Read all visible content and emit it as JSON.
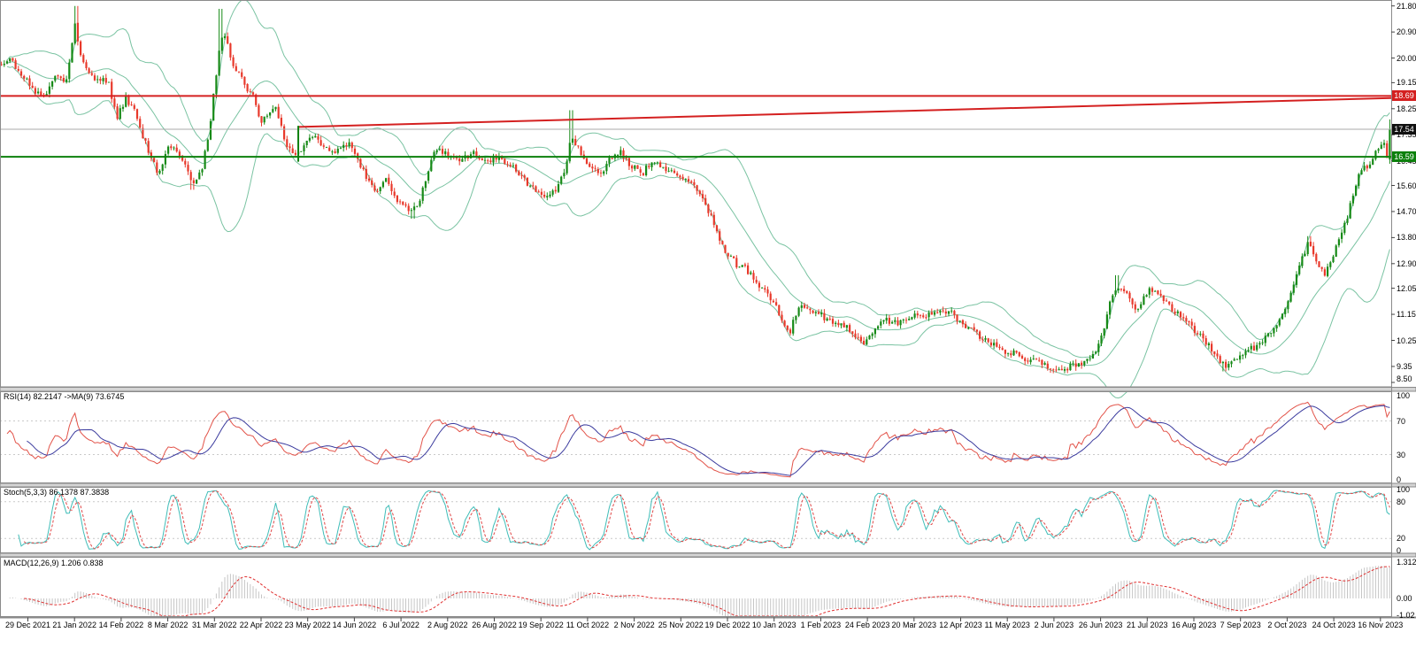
{
  "window": {
    "title": "trading-chart",
    "background": "#ffffff"
  },
  "colors": {
    "candle_up": "#178a17",
    "candle_down": "#e8392b",
    "bollinger": "#7ac3a2",
    "resistance_line": "#d42020",
    "support_line": "#0c800c",
    "last_price_line": "#a8a8a8",
    "trendline": "#d42020",
    "rsi_line": "#e25248",
    "rsi_ma_line": "#3b3b9e",
    "stoch_k": "#3fbdb8",
    "stoch_d": "#e04848",
    "macd_hist": "#c6c6c6",
    "macd_signal": "#e03030",
    "grid": "#c9c9c9",
    "panel_border": "#8a8a8a",
    "separator_fill": "#d4d4d4"
  },
  "chart_data": {
    "type": "candlestick",
    "x_dates": [
      "29 Dec 2021",
      "21 Jan 2022",
      "14 Feb 2022",
      "8 Mar 2022",
      "31 Mar 2022",
      "22 Apr 2022",
      "23 May 2022",
      "14 Jun 2022",
      "6 Jul 2022",
      "2 Aug 2022",
      "26 Aug 2022",
      "19 Sep 2022",
      "11 Oct 2022",
      "2 Nov 2022",
      "25 Nov 2022",
      "19 Dec 2022",
      "10 Jan 2023",
      "1 Feb 2023",
      "24 Feb 2023",
      "20 Mar 2023",
      "12 Apr 2023",
      "11 May 2023",
      "2 Jun 2023",
      "26 Jun 2023",
      "21 Jul 2023",
      "16 Aug 2023",
      "7 Sep 2023",
      "2 Oct 2023",
      "24 Oct 2023",
      "16 Nov 2023"
    ],
    "main": {
      "ylim": [
        8.5,
        21.8
      ],
      "y_ticks": [
        "21.80",
        "20.90",
        "20.00",
        "19.15",
        "18.25",
        "17.35",
        "16.45",
        "15.60",
        "14.70",
        "13.80",
        "12.90",
        "12.05",
        "11.15",
        "10.25",
        "9.35",
        "8.50"
      ],
      "num_bars": 492,
      "bollinger": {
        "period": 20,
        "deviation": 2
      },
      "lines": {
        "resistance": {
          "value": 18.69,
          "label": "18.69"
        },
        "support": {
          "value": 16.59,
          "label": "16.59"
        },
        "last_price": {
          "value": 17.54,
          "label": "17.54"
        },
        "trendline": {
          "x1_frac": 0.2144,
          "price1": 17.62,
          "x2_frac": 1.0,
          "price2": 18.62
        },
        "vertical_segment": {
          "x_frac": 0.2144,
          "price_top": 17.66,
          "price_bottom": 16.42
        }
      },
      "price_path_anchors": [
        [
          0,
          19.7
        ],
        [
          0.0076,
          20.0
        ],
        [
          0.0159,
          19.4
        ],
        [
          0.0254,
          18.9
        ],
        [
          0.0318,
          18.6
        ],
        [
          0.0394,
          19.4
        ],
        [
          0.0477,
          19.2
        ],
        [
          0.0509,
          20.3
        ],
        [
          0.0541,
          21.2
        ],
        [
          0.0573,
          20.3
        ],
        [
          0.0617,
          19.6
        ],
        [
          0.0687,
          19.3
        ],
        [
          0.0776,
          19.2
        ],
        [
          0.084,
          17.9
        ],
        [
          0.0903,
          18.6
        ],
        [
          0.0967,
          18.2
        ],
        [
          0.1037,
          17.2
        ],
        [
          0.1094,
          16.5
        ],
        [
          0.1145,
          16.0
        ],
        [
          0.1209,
          16.9
        ],
        [
          0.1272,
          16.7
        ],
        [
          0.1336,
          16.2
        ],
        [
          0.1387,
          15.6
        ],
        [
          0.145,
          16.2
        ],
        [
          0.1508,
          17.5
        ],
        [
          0.1546,
          19.2
        ],
        [
          0.1578,
          20.3
        ],
        [
          0.161,
          20.9
        ],
        [
          0.1641,
          20.3
        ],
        [
          0.1692,
          19.6
        ],
        [
          0.1749,
          19.2
        ],
        [
          0.1813,
          18.7
        ],
        [
          0.1877,
          17.8
        ],
        [
          0.1921,
          18.0
        ],
        [
          0.1972,
          18.4
        ],
        [
          0.2023,
          17.6
        ],
        [
          0.2068,
          16.8
        ],
        [
          0.2131,
          16.6
        ],
        [
          0.2195,
          17.1
        ],
        [
          0.2258,
          17.3
        ],
        [
          0.2322,
          16.9
        ],
        [
          0.2386,
          16.7
        ],
        [
          0.2449,
          16.9
        ],
        [
          0.2513,
          17.0
        ],
        [
          0.2576,
          16.4
        ],
        [
          0.264,
          15.8
        ],
        [
          0.2704,
          15.4
        ],
        [
          0.2767,
          15.9
        ],
        [
          0.2831,
          15.3
        ],
        [
          0.2894,
          14.9
        ],
        [
          0.2958,
          14.7
        ],
        [
          0.3022,
          15.1
        ],
        [
          0.3098,
          16.5
        ],
        [
          0.3149,
          17.0
        ],
        [
          0.3212,
          16.6
        ],
        [
          0.3308,
          16.5
        ],
        [
          0.3403,
          16.7
        ],
        [
          0.3499,
          16.4
        ],
        [
          0.3594,
          16.6
        ],
        [
          0.369,
          16.2
        ],
        [
          0.3766,
          15.8
        ],
        [
          0.3849,
          15.4
        ],
        [
          0.3931,
          15.1
        ],
        [
          0.4008,
          15.6
        ],
        [
          0.4071,
          16.3
        ],
        [
          0.4103,
          17.3
        ],
        [
          0.4148,
          17.0
        ],
        [
          0.4198,
          16.5
        ],
        [
          0.4262,
          16.2
        ],
        [
          0.4326,
          16.0
        ],
        [
          0.4389,
          16.5
        ],
        [
          0.4453,
          16.8
        ],
        [
          0.4529,
          16.3
        ],
        [
          0.4612,
          16.0
        ],
        [
          0.4695,
          16.4
        ],
        [
          0.4771,
          16.2
        ],
        [
          0.4847,
          16.0
        ],
        [
          0.493,
          15.9
        ],
        [
          0.5013,
          15.4
        ],
        [
          0.5089,
          14.8
        ],
        [
          0.5127,
          14.3
        ],
        [
          0.5165,
          13.8
        ],
        [
          0.5204,
          13.4
        ],
        [
          0.5248,
          13.1
        ],
        [
          0.5293,
          12.9
        ],
        [
          0.5344,
          12.8
        ],
        [
          0.5407,
          12.4
        ],
        [
          0.5458,
          12.1
        ],
        [
          0.5509,
          11.9
        ],
        [
          0.5585,
          11.3
        ],
        [
          0.5636,
          10.8
        ],
        [
          0.568,
          10.6
        ],
        [
          0.5725,
          11.2
        ],
        [
          0.5776,
          11.5
        ],
        [
          0.5839,
          11.3
        ],
        [
          0.5916,
          11.1
        ],
        [
          0.5979,
          10.9
        ],
        [
          0.6043,
          10.8
        ],
        [
          0.6107,
          10.6
        ],
        [
          0.617,
          10.3
        ],
        [
          0.6221,
          10.15
        ],
        [
          0.6285,
          10.7
        ],
        [
          0.6361,
          11.0
        ],
        [
          0.6438,
          10.8
        ],
        [
          0.652,
          11.0
        ],
        [
          0.6597,
          11.2
        ],
        [
          0.6679,
          11.1
        ],
        [
          0.6756,
          11.3
        ],
        [
          0.6838,
          11.2
        ],
        [
          0.6921,
          10.8
        ],
        [
          0.6997,
          10.5
        ],
        [
          0.7074,
          10.3
        ],
        [
          0.715,
          10.1
        ],
        [
          0.7226,
          9.9
        ],
        [
          0.7303,
          9.8
        ],
        [
          0.7379,
          9.6
        ],
        [
          0.7455,
          9.5
        ],
        [
          0.7532,
          9.35
        ],
        [
          0.7608,
          9.3
        ],
        [
          0.7672,
          9.25
        ],
        [
          0.7735,
          9.4
        ],
        [
          0.7799,
          9.6
        ],
        [
          0.7863,
          9.7
        ],
        [
          0.7907,
          10.2
        ],
        [
          0.7952,
          11.0
        ],
        [
          0.799,
          11.7
        ],
        [
          0.8028,
          12.1
        ],
        [
          0.8079,
          11.9
        ],
        [
          0.813,
          11.6
        ],
        [
          0.8175,
          11.3
        ],
        [
          0.8219,
          11.8
        ],
        [
          0.827,
          12.1
        ],
        [
          0.8321,
          11.9
        ],
        [
          0.8372,
          11.6
        ],
        [
          0.8429,
          11.3
        ],
        [
          0.8486,
          11.1
        ],
        [
          0.8544,
          10.9
        ],
        [
          0.8601,
          10.5
        ],
        [
          0.8652,
          10.3
        ],
        [
          0.8702,
          10.0
        ],
        [
          0.8753,
          9.6
        ],
        [
          0.8804,
          9.4
        ],
        [
          0.8855,
          9.6
        ],
        [
          0.8906,
          9.7
        ],
        [
          0.8982,
          9.9
        ],
        [
          0.9059,
          10.2
        ],
        [
          0.9135,
          10.5
        ],
        [
          0.9192,
          10.9
        ],
        [
          0.9237,
          11.4
        ],
        [
          0.9275,
          11.9
        ],
        [
          0.9313,
          12.4
        ],
        [
          0.9351,
          13.0
        ],
        [
          0.9402,
          13.6
        ],
        [
          0.944,
          13.3
        ],
        [
          0.9478,
          12.9
        ],
        [
          0.9523,
          12.5
        ],
        [
          0.9561,
          12.9
        ],
        [
          0.9606,
          13.5
        ],
        [
          0.9644,
          14.0
        ],
        [
          0.9682,
          14.5
        ],
        [
          0.972,
          15.2
        ],
        [
          0.9758,
          15.8
        ],
        [
          0.9796,
          16.3
        ],
        [
          0.9835,
          16.1
        ],
        [
          0.9873,
          16.6
        ],
        [
          0.9911,
          16.9
        ],
        [
          0.9949,
          17.0
        ]
      ],
      "high_spikes": [
        [
          0.0541,
          21.8
        ],
        [
          0.158,
          21.7
        ],
        [
          0.4103,
          18.2
        ],
        [
          0.8028,
          12.5
        ],
        [
          0.9402,
          13.85
        ]
      ],
      "low_spikes": [
        [
          0.1387,
          15.45
        ],
        [
          0.2958,
          14.45
        ],
        [
          0.7672,
          9.12
        ],
        [
          0.8804,
          9.18
        ]
      ]
    },
    "rsi": {
      "label": "RSI(14) 82.2147  ->MA(9) 73.6745",
      "period": 14,
      "ma_period": 9,
      "last_value": 82.2147,
      "ma_last_value": 73.6745,
      "range": [
        0,
        100
      ],
      "ticks": [
        "100",
        "70",
        "30",
        "0"
      ],
      "gridlines": [
        70,
        30
      ]
    },
    "stoch": {
      "label": "Stoch(5,3,3) 86.1378 87.3838",
      "k_period": 5,
      "d_period": 3,
      "slowing": 3,
      "last_k": 86.1378,
      "last_d": 87.3838,
      "range": [
        0,
        100
      ],
      "ticks": [
        "100",
        "80",
        "20",
        "0"
      ],
      "gridlines": [
        80,
        20
      ]
    },
    "macd": {
      "label": "MACD(12,26,9) 1.206 0.838",
      "fast": 12,
      "slow": 26,
      "signal": 9,
      "last_macd": 1.206,
      "last_signal": 0.838,
      "ticks": [
        "1.312",
        "0.00",
        "-1.02"
      ]
    }
  }
}
